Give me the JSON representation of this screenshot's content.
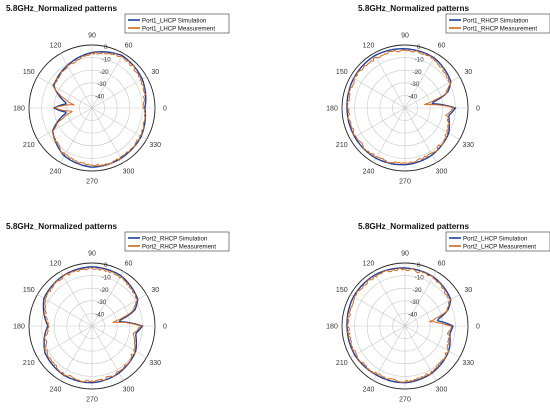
{
  "chart_data": [
    {
      "type": "polar-line",
      "title": "5.8GHz_Normalized patterns",
      "radial_ticks": [
        "0",
        "-10",
        "-20",
        "-30",
        "-40"
      ],
      "angle_ticks": [
        "0",
        "30",
        "60",
        "90",
        "120",
        "150",
        "180",
        "210",
        "240",
        "270",
        "300",
        "330"
      ],
      "r_range_db": [
        -50,
        0
      ],
      "series": [
        {
          "name": "Port1_LHCP Simulation",
          "color": "#1f3f9f",
          "profile": [
            [
              0,
              -8
            ],
            [
              30,
              -4
            ],
            [
              60,
              -2
            ],
            [
              90,
              -6
            ],
            [
              120,
              -11
            ],
            [
              150,
              -15
            ],
            [
              170,
              -30
            ],
            [
              180,
              -20
            ],
            [
              190,
              -30
            ],
            [
              210,
              -14
            ],
            [
              240,
              -6
            ],
            [
              270,
              -3
            ],
            [
              300,
              -4
            ],
            [
              330,
              -5
            ],
            [
              350,
              -7
            ]
          ]
        },
        {
          "name": "Port1_LHCP Measurement",
          "color": "#d2691e",
          "profile": [
            [
              0,
              -9
            ],
            [
              30,
              -5
            ],
            [
              60,
              -3
            ],
            [
              90,
              -7
            ],
            [
              120,
              -12
            ],
            [
              150,
              -15
            ],
            [
              170,
              -35
            ],
            [
              180,
              -20
            ],
            [
              190,
              -35
            ],
            [
              210,
              -14
            ],
            [
              240,
              -7
            ],
            [
              270,
              -4
            ],
            [
              300,
              -4
            ],
            [
              330,
              -6
            ],
            [
              350,
              -8
            ]
          ]
        }
      ]
    },
    {
      "type": "polar-line",
      "title": "5.8GHz_Normalized patterns",
      "radial_ticks": [
        "0",
        "-10",
        "-20",
        "-30",
        "-40"
      ],
      "angle_ticks": [
        "0",
        "30",
        "60",
        "90",
        "120",
        "150",
        "180",
        "210",
        "240",
        "270",
        "300",
        "330"
      ],
      "r_range_db": [
        -50,
        0
      ],
      "series": [
        {
          "name": "Port1_RHCP Simulation",
          "color": "#1f3f9f",
          "profile": [
            [
              0,
              -10
            ],
            [
              10,
              -30
            ],
            [
              20,
              -14
            ],
            [
              30,
              -8
            ],
            [
              60,
              -4
            ],
            [
              90,
              -3
            ],
            [
              120,
              -2
            ],
            [
              150,
              -3
            ],
            [
              180,
              -4
            ],
            [
              210,
              -4
            ],
            [
              240,
              -4
            ],
            [
              270,
              -5
            ],
            [
              300,
              -7
            ],
            [
              330,
              -10
            ],
            [
              350,
              -15
            ]
          ]
        },
        {
          "name": "Port1_RHCP Measurement",
          "color": "#d2691e",
          "profile": [
            [
              0,
              -11
            ],
            [
              10,
              -35
            ],
            [
              20,
              -15
            ],
            [
              30,
              -9
            ],
            [
              60,
              -5
            ],
            [
              90,
              -4
            ],
            [
              120,
              -4
            ],
            [
              150,
              -4
            ],
            [
              180,
              -5
            ],
            [
              210,
              -5
            ],
            [
              240,
              -5
            ],
            [
              270,
              -6
            ],
            [
              300,
              -8
            ],
            [
              330,
              -11
            ],
            [
              350,
              -16
            ]
          ]
        }
      ]
    },
    {
      "type": "polar-line",
      "title": "5.8GHz_Normalized patterns",
      "radial_ticks": [
        "0",
        "-10",
        "-20",
        "-30",
        "-40"
      ],
      "angle_ticks": [
        "0",
        "30",
        "60",
        "90",
        "120",
        "150",
        "180",
        "210",
        "240",
        "270",
        "300",
        "330"
      ],
      "r_range_db": [
        -50,
        0
      ],
      "series": [
        {
          "name": "Port2_RHCP Simulation",
          "color": "#1f3f9f",
          "profile": [
            [
              0,
              -10
            ],
            [
              10,
              -30
            ],
            [
              20,
              -14
            ],
            [
              30,
              -8
            ],
            [
              60,
              -4
            ],
            [
              90,
              -3
            ],
            [
              120,
              -4
            ],
            [
              150,
              -6
            ],
            [
              170,
              -12
            ],
            [
              180,
              -15
            ],
            [
              190,
              -12
            ],
            [
              210,
              -7
            ],
            [
              240,
              -5
            ],
            [
              270,
              -5
            ],
            [
              300,
              -7
            ],
            [
              330,
              -10
            ],
            [
              350,
              -15
            ]
          ]
        },
        {
          "name": "Port2_RHCP Measurement",
          "color": "#d2691e",
          "profile": [
            [
              0,
              -11
            ],
            [
              10,
              -33
            ],
            [
              20,
              -15
            ],
            [
              30,
              -9
            ],
            [
              60,
              -5
            ],
            [
              90,
              -4
            ],
            [
              120,
              -5
            ],
            [
              150,
              -7
            ],
            [
              170,
              -13
            ],
            [
              180,
              -16
            ],
            [
              190,
              -13
            ],
            [
              210,
              -8
            ],
            [
              240,
              -6
            ],
            [
              270,
              -6
            ],
            [
              300,
              -8
            ],
            [
              330,
              -11
            ],
            [
              350,
              -16
            ]
          ]
        }
      ]
    },
    {
      "type": "polar-line",
      "title": "5.8GHz_Normalized patterns",
      "radial_ticks": [
        "0",
        "-10",
        "-20",
        "-30",
        "-40"
      ],
      "angle_ticks": [
        "0",
        "30",
        "60",
        "90",
        "120",
        "150",
        "180",
        "210",
        "240",
        "270",
        "300",
        "330"
      ],
      "r_range_db": [
        -50,
        0
      ],
      "series": [
        {
          "name": "Port2_LHCP Simulation",
          "color": "#1f3f9f",
          "profile": [
            [
              0,
              -12
            ],
            [
              10,
              -25
            ],
            [
              20,
              -14
            ],
            [
              30,
              -8
            ],
            [
              60,
              -5
            ],
            [
              90,
              -4
            ],
            [
              120,
              -3
            ],
            [
              150,
              -3
            ],
            [
              180,
              -4
            ],
            [
              210,
              -4
            ],
            [
              240,
              -5
            ],
            [
              270,
              -5
            ],
            [
              300,
              -7
            ],
            [
              330,
              -10
            ],
            [
              350,
              -14
            ]
          ]
        },
        {
          "name": "Port2_LHCP Measurement",
          "color": "#d2691e",
          "profile": [
            [
              0,
              -13
            ],
            [
              10,
              -30
            ],
            [
              20,
              -15
            ],
            [
              30,
              -9
            ],
            [
              60,
              -6
            ],
            [
              90,
              -5
            ],
            [
              120,
              -4
            ],
            [
              150,
              -4
            ],
            [
              180,
              -5
            ],
            [
              210,
              -5
            ],
            [
              240,
              -6
            ],
            [
              270,
              -6
            ],
            [
              300,
              -8
            ],
            [
              330,
              -11
            ],
            [
              350,
              -15
            ]
          ]
        }
      ]
    }
  ]
}
